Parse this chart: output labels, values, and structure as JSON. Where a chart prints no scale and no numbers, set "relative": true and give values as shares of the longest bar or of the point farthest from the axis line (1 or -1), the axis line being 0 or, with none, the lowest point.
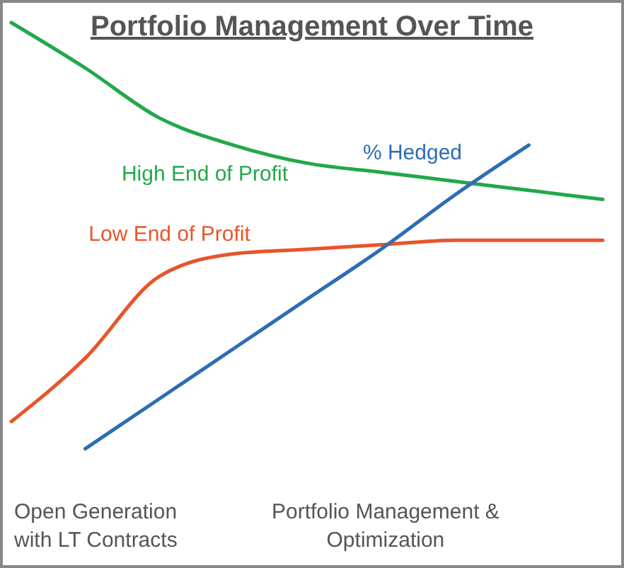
{
  "chart_data": {
    "type": "line",
    "title": "Portfolio Management Over Time",
    "relative": true,
    "categories": [
      null,
      null,
      null,
      null,
      null,
      null,
      null,
      null,
      null
    ],
    "series": [
      {
        "name": "High End of Profit",
        "color": "#22a84a",
        "values": [
          1.0,
          0.9,
          0.79,
          0.73,
          0.69,
          0.67,
          0.65,
          0.63,
          0.61
        ]
      },
      {
        "name": "Low End of Profit",
        "color": "#e8552a",
        "values": [
          0.12,
          0.26,
          0.44,
          0.49,
          0.5,
          0.51,
          0.52,
          0.52,
          0.52
        ]
      },
      {
        "name": "% Hedged",
        "color": "#2e6db4",
        "values": [
          null,
          0.06,
          0.17,
          0.28,
          0.39,
          0.5,
          0.62,
          0.73,
          null
        ]
      }
    ],
    "annotations": [
      "Open Generation\nwith LT Contracts",
      "Portfolio Management &\nOptimization"
    ]
  }
}
